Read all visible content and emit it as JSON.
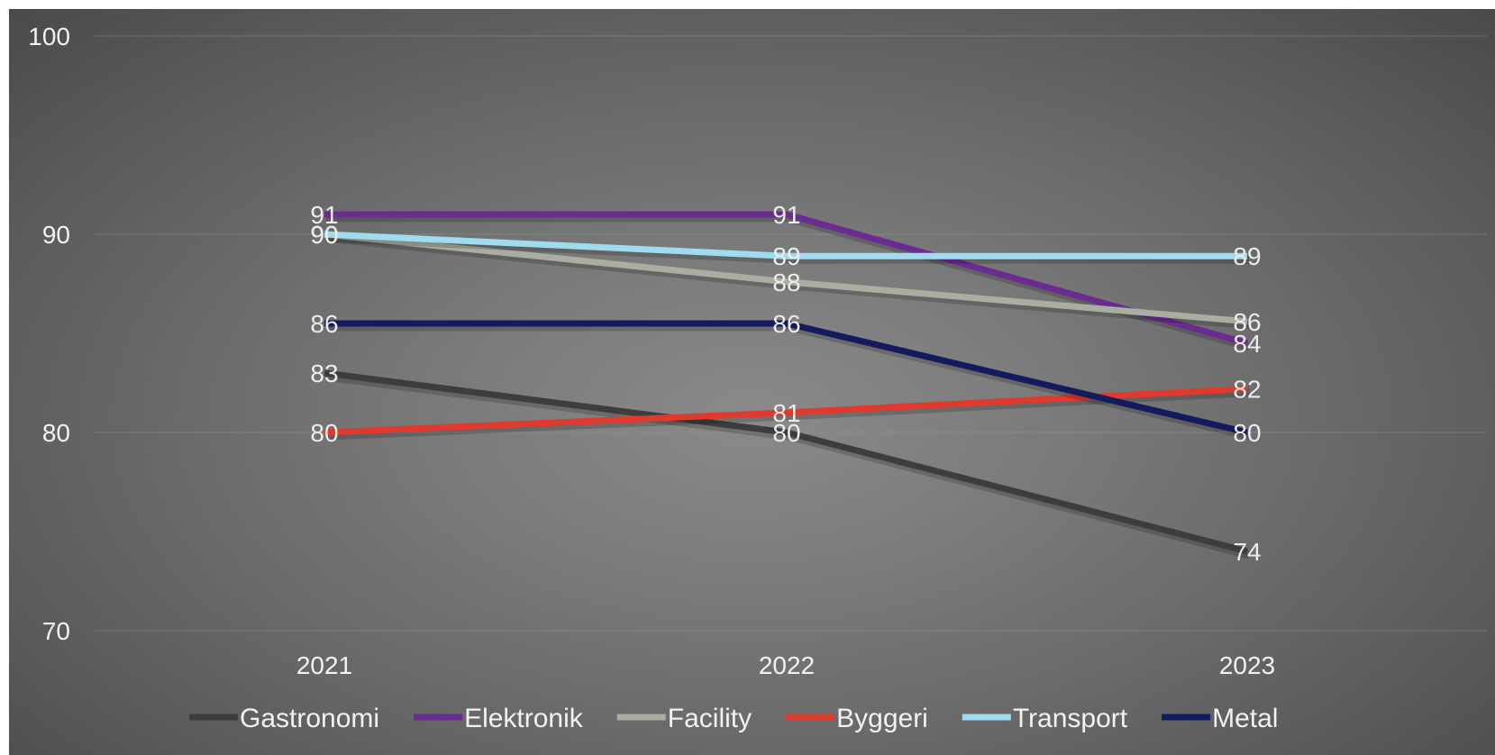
{
  "chart_data": {
    "type": "line",
    "title": "",
    "xlabel": "",
    "ylabel": "",
    "categories": [
      "2021",
      "2022",
      "2023"
    ],
    "ylim": [
      70,
      100
    ],
    "yticks": [
      "70",
      "80",
      "90",
      "100"
    ],
    "grid": true,
    "legend": "bottom",
    "series": [
      {
        "name": "Gastronomi",
        "values": [
          83,
          80,
          74
        ],
        "labels": [
          "83",
          "80",
          "74"
        ],
        "color": "#3d3d3d"
      },
      {
        "name": "Elektronik",
        "values": [
          91,
          91,
          84.5
        ],
        "labels": [
          "91",
          "91",
          "84"
        ],
        "color": "#6a2c91"
      },
      {
        "name": "Facility",
        "values": [
          90,
          87.6,
          85.6
        ],
        "labels": [
          "90",
          "88",
          "86"
        ],
        "color": "#a9ada2"
      },
      {
        "name": "Byggeri",
        "values": [
          80,
          81,
          82.2
        ],
        "labels": [
          "80",
          "81",
          "82"
        ],
        "color": "#e03a2e"
      },
      {
        "name": "Transport",
        "values": [
          90,
          88.9,
          88.9
        ],
        "labels": [
          "90",
          "89",
          "89"
        ],
        "color": "#9fdcf0"
      },
      {
        "name": "Metal",
        "values": [
          85.5,
          85.5,
          80
        ],
        "labels": [
          "86",
          "86",
          "80"
        ],
        "color": "#141a5e"
      }
    ]
  }
}
